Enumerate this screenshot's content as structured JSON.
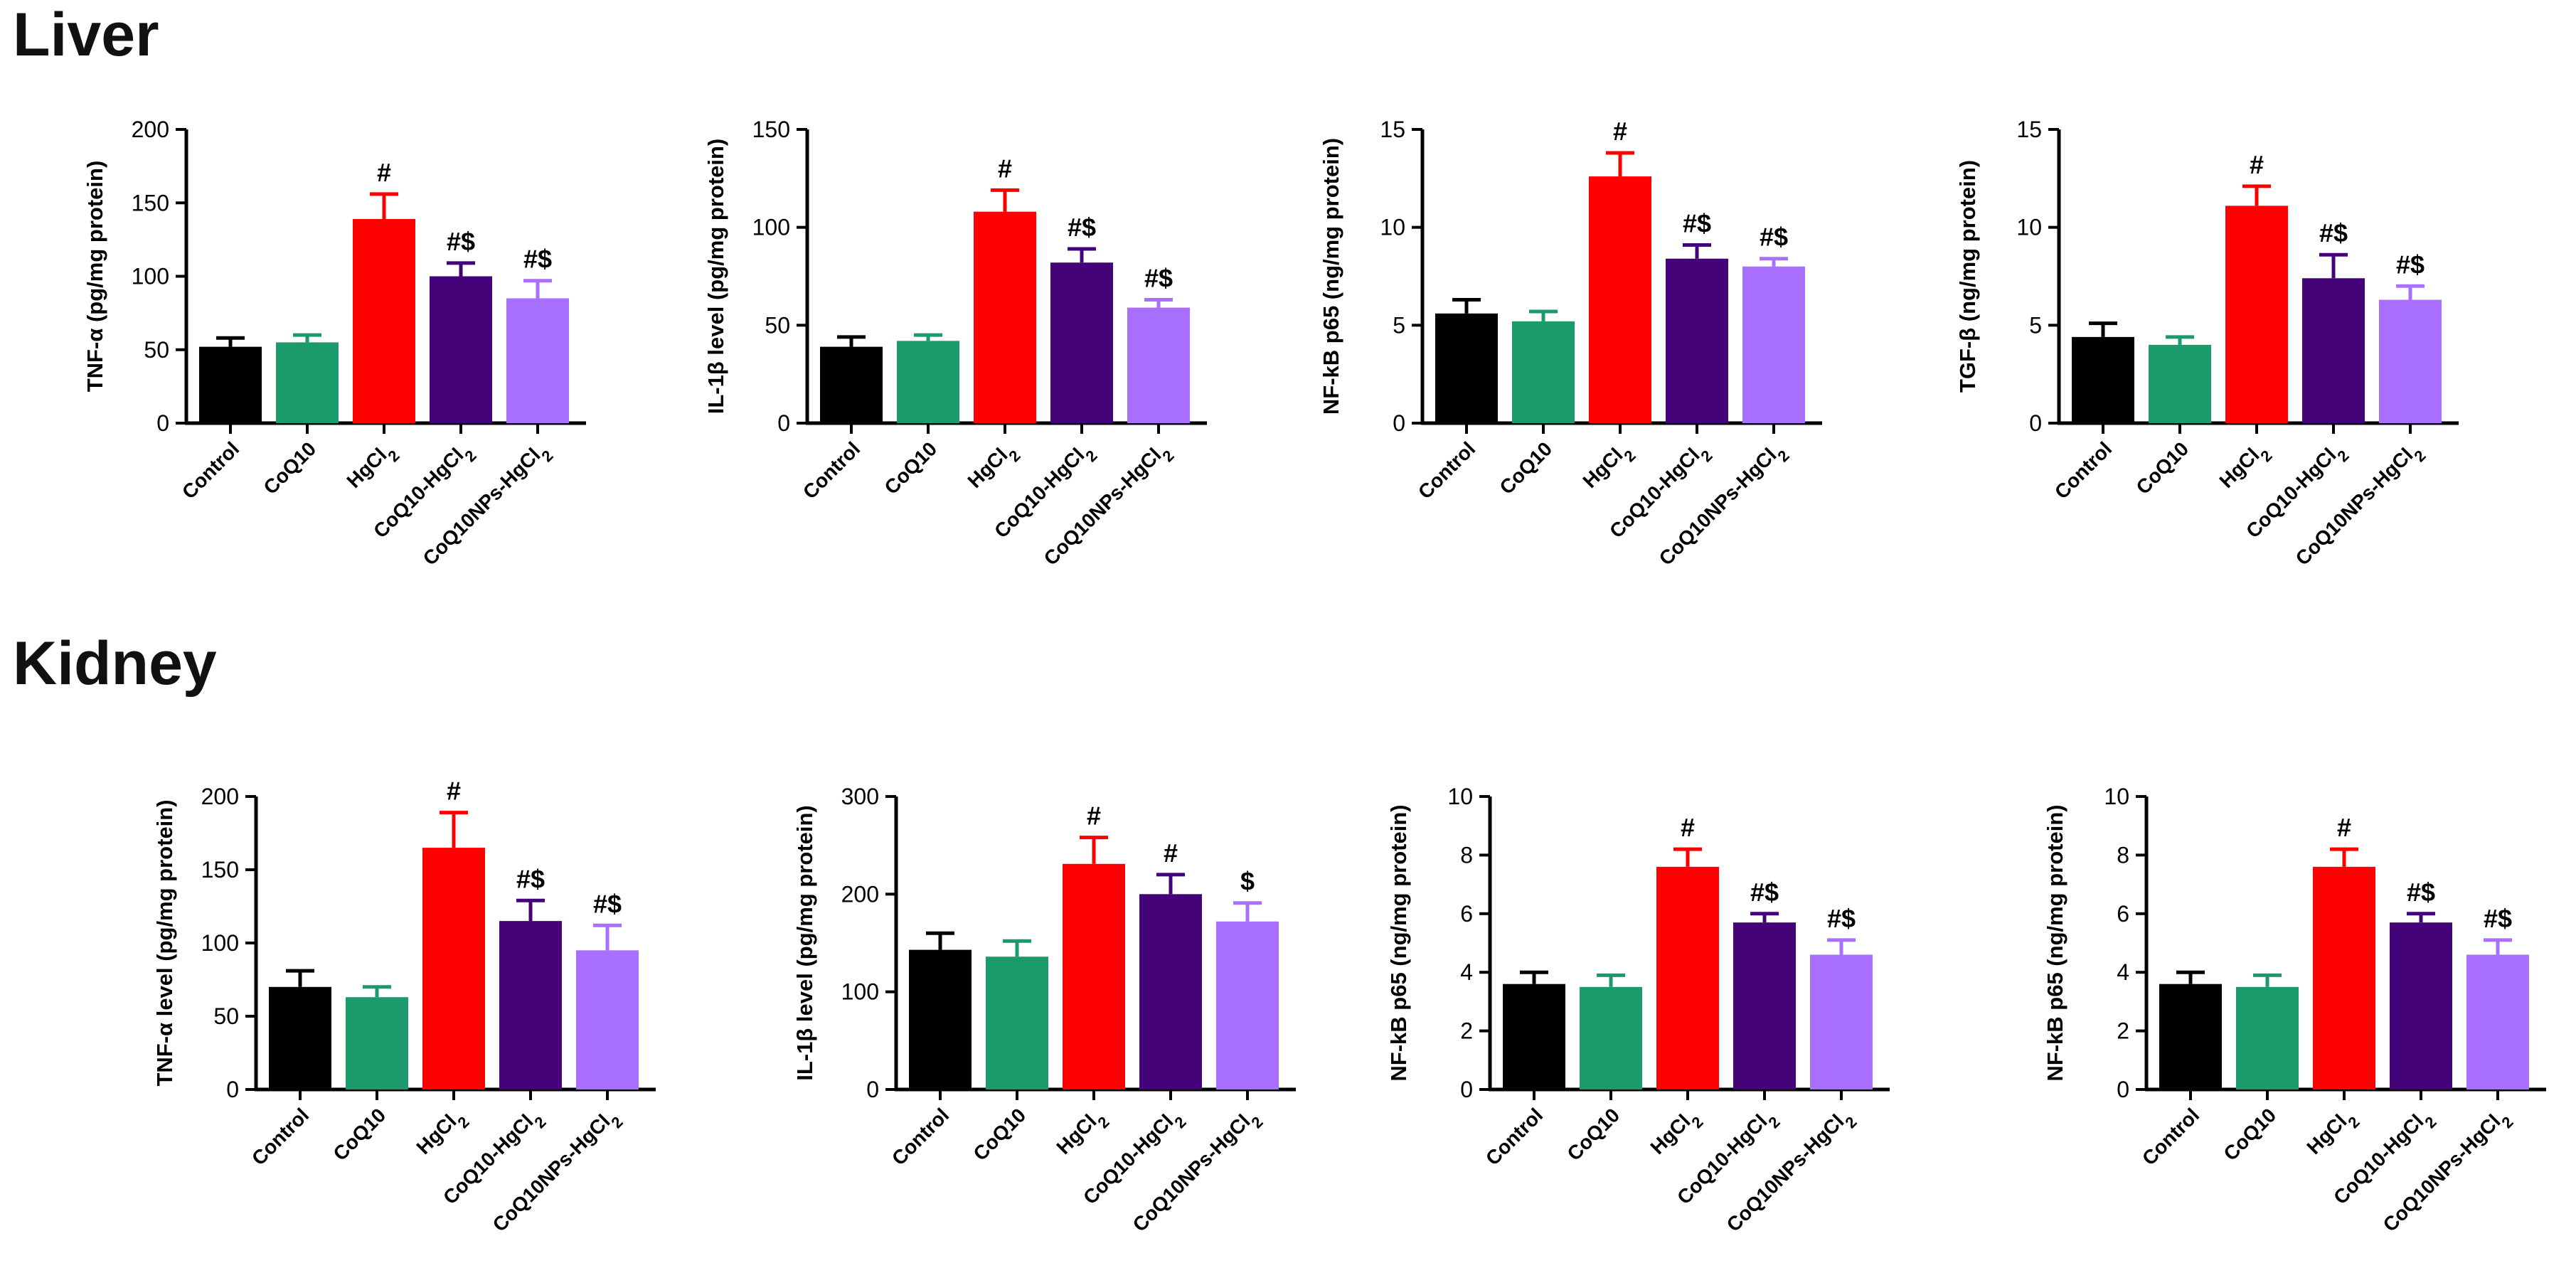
{
  "sections": [
    {
      "title": "Liver"
    },
    {
      "title": "Kidney"
    }
  ],
  "colors": {
    "Control": "#000000",
    "CoQ10": "#1b9a6c",
    "HgCl2": "#ff0000",
    "CoQ10-HgCl2": "#45037a",
    "CoQ10NPs-HgCl2": "#a970ff"
  },
  "chart_data": [
    {
      "type": "bar",
      "section": "Liver",
      "ylabel": "TNF-α (pg/mg protein)",
      "ylim": [
        0,
        200
      ],
      "yticks": [
        "0",
        "50",
        "100",
        "150",
        "200"
      ],
      "ytick_values": [
        0,
        50,
        100,
        150,
        200
      ],
      "categories": [
        "Control",
        "CoQ10",
        "HgCl2",
        "CoQ10-HgCl2",
        "CoQ10NPs-HgCl2"
      ],
      "values": [
        52,
        55,
        139,
        100,
        85
      ],
      "errors": [
        6,
        5,
        17,
        9,
        12
      ],
      "annotations": [
        "",
        "",
        "#",
        "#$",
        "#$"
      ]
    },
    {
      "type": "bar",
      "section": "Liver",
      "ylabel": "IL-1β level (pg/mg protein)",
      "ylim": [
        0,
        150
      ],
      "yticks": [
        "0",
        "50",
        "100",
        "150"
      ],
      "ytick_values": [
        0,
        50,
        100,
        150
      ],
      "categories": [
        "Control",
        "CoQ10",
        "HgCl2",
        "CoQ10-HgCl2",
        "CoQ10NPs-HgCl2"
      ],
      "values": [
        39,
        42,
        108,
        82,
        59
      ],
      "errors": [
        5,
        3,
        11,
        7,
        4
      ],
      "annotations": [
        "",
        "",
        "#",
        "#$",
        "#$"
      ]
    },
    {
      "type": "bar",
      "section": "Liver",
      "ylabel": "NF-kB p65 (ng/mg protein)",
      "ylim": [
        0,
        15
      ],
      "yticks": [
        "0",
        "5",
        "10",
        "15"
      ],
      "ytick_values": [
        0,
        5,
        10,
        15
      ],
      "categories": [
        "Control",
        "CoQ10",
        "HgCl2",
        "CoQ10-HgCl2",
        "CoQ10NPs-HgCl2"
      ],
      "values": [
        5.6,
        5.2,
        12.6,
        8.4,
        8.0
      ],
      "errors": [
        0.7,
        0.5,
        1.2,
        0.7,
        0.4
      ],
      "annotations": [
        "",
        "",
        "#",
        "#$",
        "#$"
      ]
    },
    {
      "type": "bar",
      "section": "Liver",
      "ylabel": "TGF-β (ng/mg protein)",
      "ylim": [
        0,
        15
      ],
      "yticks": [
        "0",
        "5",
        "10",
        "15"
      ],
      "ytick_values": [
        0,
        5,
        10,
        15
      ],
      "categories": [
        "Control",
        "CoQ10",
        "HgCl2",
        "CoQ10-HgCl2",
        "CoQ10NPs-HgCl2"
      ],
      "values": [
        4.4,
        4.0,
        11.1,
        7.4,
        6.3
      ],
      "errors": [
        0.7,
        0.4,
        1.0,
        1.2,
        0.7
      ],
      "annotations": [
        "",
        "",
        "#",
        "#$",
        "#$"
      ]
    },
    {
      "type": "bar",
      "section": "Kidney",
      "ylabel": "TNF-α level (pg/mg protein)",
      "ylim": [
        0,
        200
      ],
      "yticks": [
        "0",
        "50",
        "100",
        "150",
        "200"
      ],
      "ytick_values": [
        0,
        50,
        100,
        150,
        200
      ],
      "categories": [
        "Control",
        "CoQ10",
        "HgCl2",
        "CoQ10-HgCl2",
        "CoQ10NPs-HgCl2"
      ],
      "values": [
        70,
        63,
        165,
        115,
        95
      ],
      "errors": [
        11,
        7,
        24,
        14,
        17
      ],
      "annotations": [
        "",
        "",
        "#",
        "#$",
        "#$"
      ]
    },
    {
      "type": "bar",
      "section": "Kidney",
      "ylabel": "IL-1β level (pg/mg protein)",
      "ylim": [
        0,
        300
      ],
      "yticks": [
        "0",
        "100",
        "200",
        "300"
      ],
      "ytick_values": [
        0,
        100,
        200,
        300
      ],
      "categories": [
        "Control",
        "CoQ10",
        "HgCl2",
        "CoQ10-HgCl2",
        "CoQ10NPs-HgCl2"
      ],
      "values": [
        143,
        136,
        231,
        200,
        172
      ],
      "errors": [
        17,
        16,
        27,
        20,
        19
      ],
      "annotations": [
        "",
        "",
        "#",
        "#",
        "$"
      ]
    },
    {
      "type": "bar",
      "section": "Kidney",
      "ylabel": "NF-kB p65 (ng/mg protein)",
      "ylim": [
        0,
        10
      ],
      "yticks": [
        "0",
        "2",
        "4",
        "6",
        "8",
        "10"
      ],
      "ytick_values": [
        0,
        2,
        4,
        6,
        8,
        10
      ],
      "categories": [
        "Control",
        "CoQ10",
        "HgCl2",
        "CoQ10-HgCl2",
        "CoQ10NPs-HgCl2"
      ],
      "values": [
        3.6,
        3.5,
        7.6,
        5.7,
        4.6
      ],
      "errors": [
        0.4,
        0.4,
        0.6,
        0.3,
        0.5
      ],
      "annotations": [
        "",
        "",
        "#",
        "#$",
        "#$"
      ]
    },
    {
      "type": "bar",
      "section": "Kidney",
      "ylabel": "NF-kB p65 (ng/mg protein)",
      "ylim": [
        0,
        10
      ],
      "yticks": [
        "0",
        "2",
        "4",
        "6",
        "8",
        "10"
      ],
      "ytick_values": [
        0,
        2,
        4,
        6,
        8,
        10
      ],
      "categories": [
        "Control",
        "CoQ10",
        "HgCl2",
        "CoQ10-HgCl2",
        "CoQ10NPs-HgCl2"
      ],
      "values": [
        3.6,
        3.5,
        7.6,
        5.7,
        4.6
      ],
      "errors": [
        0.4,
        0.4,
        0.6,
        0.3,
        0.5
      ],
      "annotations": [
        "",
        "",
        "#",
        "#$",
        "#$"
      ]
    }
  ]
}
